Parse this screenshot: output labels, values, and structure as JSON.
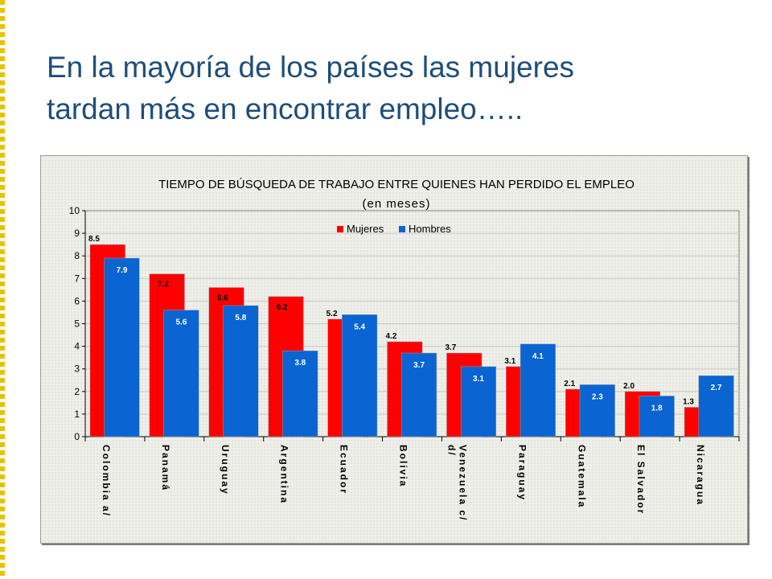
{
  "slide": {
    "title_line1": "En la mayoría de los países las mujeres",
    "title_line2": "tardan más en encontrar empleo….."
  },
  "colors": {
    "mujeres": "#ff0000",
    "hombres": "#0a64d2",
    "title": "#1f4e79",
    "frame_border": "#d4b800"
  },
  "chart_data": {
    "type": "bar",
    "title": "TIEMPO DE BÚSQUEDA DE TRABAJO ENTRE QUIENES HAN PERDIDO EL EMPLEO",
    "subtitle": "(en meses)",
    "xlabel": "",
    "ylabel": "",
    "ylim": [
      0,
      10
    ],
    "yticks": [
      0,
      1,
      2,
      3,
      4,
      5,
      6,
      7,
      8,
      9,
      10
    ],
    "grid": true,
    "legend_position": "top-center",
    "categories": [
      [
        "Colombia a/"
      ],
      [
        "Panamá"
      ],
      [
        "Uruguay"
      ],
      [
        "Argentina"
      ],
      [
        "Ecuador"
      ],
      [
        "Bolivia"
      ],
      [
        "Venezuela c/",
        "d/"
      ],
      [
        "Paraguay"
      ],
      [
        "Guatemala"
      ],
      [
        "El Salvador"
      ],
      [
        "Nicaragua"
      ]
    ],
    "series": [
      {
        "name": "Mujeres",
        "values": [
          8.5,
          7.2,
          6.6,
          6.2,
          5.2,
          4.2,
          3.7,
          3.1,
          2.1,
          2.0,
          1.3
        ],
        "labels": [
          "8.5",
          "7.2",
          "6.6",
          "6.2",
          "5.2",
          "4.2",
          "3.7",
          "3.1",
          "2.1",
          "2.0",
          "1.3"
        ]
      },
      {
        "name": "Hombres",
        "values": [
          7.9,
          5.6,
          5.8,
          3.8,
          5.4,
          3.7,
          3.1,
          4.1,
          2.3,
          1.8,
          2.7
        ],
        "labels": [
          "7.9",
          "5.6",
          "5.8",
          "3.8",
          "5.4",
          "3.7",
          "3.1",
          "4.1",
          "2.3",
          "1.8",
          "2.7"
        ]
      }
    ]
  }
}
